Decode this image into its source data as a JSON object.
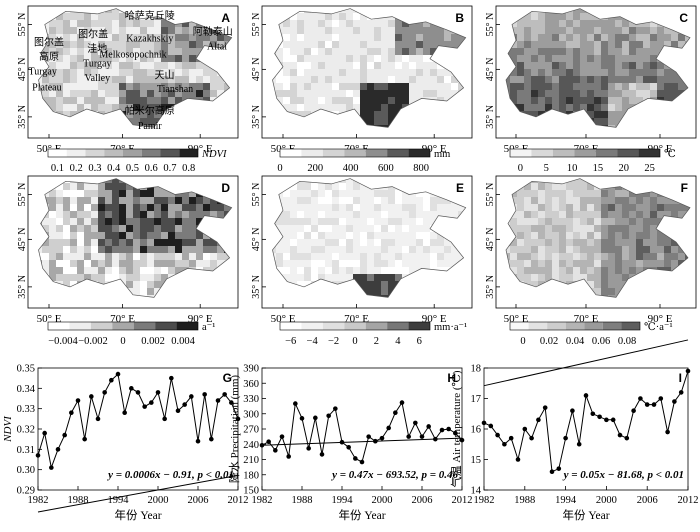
{
  "maps": [
    {
      "id": "A",
      "panel_label": "A",
      "lat_ticks": [
        "55° N",
        "45° N",
        "35° N"
      ],
      "lon_ticks": [
        "50° E",
        "70° E",
        "90° E"
      ],
      "colors": [
        "#ffffff",
        "#f0f0f0",
        "#d6d6d6",
        "#bdbdbd",
        "#a0a0a0",
        "#7d7d7d",
        "#555555",
        "#222222"
      ],
      "place_labels": [
        {
          "text": "图尔盖"
        },
        {
          "text": "高原"
        },
        {
          "text": "Turgay"
        },
        {
          "text": "Plateau"
        },
        {
          "text": "图尔盖"
        },
        {
          "text": "洼地"
        },
        {
          "text": "Turgay"
        },
        {
          "text": "Valley"
        },
        {
          "text": "哈萨克丘陵"
        },
        {
          "text": "Kazakhskiy"
        },
        {
          "text": "Melkosopochnik"
        },
        {
          "text": "阿勒泰山"
        },
        {
          "text": "Altai"
        },
        {
          "text": "天山"
        },
        {
          "text": "Tianshan"
        },
        {
          "text": "帕米尔高原"
        },
        {
          "text": "Pamir"
        }
      ]
    },
    {
      "id": "B",
      "panel_label": "B",
      "lat_ticks": [
        "55° N",
        "45° N",
        "35° N"
      ],
      "lon_ticks": [
        "50° E",
        "70° E",
        "90° E"
      ],
      "colors": [
        "#ffffff",
        "#ececec",
        "#d4d4d4",
        "#b8b8b8",
        "#8e8e8e",
        "#5a5a5a",
        "#2a2a2a"
      ]
    },
    {
      "id": "C",
      "panel_label": "C",
      "lat_ticks": [
        "55° N",
        "45° N",
        "35° N"
      ],
      "lon_ticks": [
        "50° E",
        "70° E",
        "90° E"
      ],
      "colors": [
        "#f4f4f4",
        "#d9d9d9",
        "#bdbdbd",
        "#9d9d9d",
        "#7a7a7a",
        "#575757",
        "#333333"
      ]
    },
    {
      "id": "D",
      "panel_label": "D",
      "lat_ticks": [
        "55° N",
        "45° N",
        "35° N"
      ],
      "lon_ticks": [
        "50° E",
        "70° E",
        "90° E"
      ],
      "colors": [
        "#ffffff",
        "#eeeeee",
        "#cfcfcf",
        "#a8a8a8",
        "#7b7b7b",
        "#4c4c4c",
        "#1e1e1e"
      ]
    },
    {
      "id": "E",
      "panel_label": "E",
      "lat_ticks": [
        "55° N",
        "45° N",
        "35° N"
      ],
      "lon_ticks": [
        "50° E",
        "70° E",
        "90° E"
      ],
      "colors": [
        "#ffffff",
        "#f1f1f1",
        "#e0e0e0",
        "#c9c9c9",
        "#a5a5a5",
        "#777777",
        "#3d3d3d"
      ]
    },
    {
      "id": "F",
      "panel_label": "F",
      "lat_ticks": [
        "55° N",
        "45° N",
        "35° N"
      ],
      "lon_ticks": [
        "50° E",
        "70° E",
        "90° E"
      ],
      "colors": [
        "#f9f9f9",
        "#e3e3e3",
        "#cdcdcd",
        "#b4b4b4",
        "#9a9a9a",
        "#7e7e7e",
        "#5e5e5e"
      ]
    }
  ],
  "colorbars": [
    {
      "id": "A",
      "unit": "NDVI",
      "ticks": [
        "0.1",
        "0.2",
        "0.3",
        "0.4",
        "0.5",
        "0.6",
        "0.7",
        "0.8"
      ],
      "range": [
        0.05,
        0.85
      ]
    },
    {
      "id": "B",
      "unit": "mm",
      "ticks": [
        "0",
        "200",
        "400",
        "600",
        "800"
      ],
      "range": [
        0,
        850
      ]
    },
    {
      "id": "C",
      "unit": "℃",
      "ticks": [
        "0",
        "5",
        "10",
        "15",
        "20",
        "25"
      ],
      "range": [
        -2,
        27
      ]
    },
    {
      "id": "D",
      "unit": "a⁻¹",
      "ticks": [
        "−0.004",
        "−0.002",
        "0",
        "0.002",
        "0.004"
      ],
      "range": [
        -0.005,
        0.005
      ]
    },
    {
      "id": "E",
      "unit": "mm·a⁻¹",
      "ticks": [
        "−6",
        "−4",
        "−2",
        "0",
        "2",
        "4",
        "6"
      ],
      "range": [
        -7,
        7
      ]
    },
    {
      "id": "F",
      "unit": "℃·a⁻¹",
      "ticks": [
        "0",
        "0.02",
        "0.04",
        "0.06",
        "0.08"
      ],
      "range": [
        -0.01,
        0.09
      ]
    }
  ],
  "chart_data": [
    {
      "type": "line",
      "panel_label": "G",
      "x": [
        1982,
        1983,
        1984,
        1985,
        1986,
        1987,
        1988,
        1989,
        1990,
        1991,
        1992,
        1993,
        1994,
        1995,
        1996,
        1997,
        1998,
        1999,
        2000,
        2001,
        2002,
        2003,
        2004,
        2005,
        2006,
        2007,
        2008,
        2009,
        2010,
        2011,
        2012
      ],
      "values": [
        0.307,
        0.318,
        0.301,
        0.31,
        0.317,
        0.328,
        0.334,
        0.315,
        0.336,
        0.325,
        0.338,
        0.344,
        0.347,
        0.328,
        0.34,
        0.338,
        0.331,
        0.333,
        0.338,
        0.325,
        0.345,
        0.329,
        0.332,
        0.336,
        0.314,
        0.337,
        0.315,
        0.334,
        0.337,
        0.333,
        0.325
      ],
      "trend": {
        "slope": 0.0006,
        "intercept": -0.91
      },
      "ylabel": "NDVI",
      "xlabel": "年份 Year",
      "ylim": [
        0.29,
        0.35
      ],
      "yticks": [
        "0.29",
        "0.30",
        "0.31",
        "0.32",
        "0.33",
        "0.34",
        "0.35"
      ],
      "xticks": [
        "1982",
        "1988",
        "1994",
        "2000",
        "2006",
        "2012"
      ],
      "equation": "y = 0.0006x − 0.91,  p < 0.01"
    },
    {
      "type": "line",
      "panel_label": "H",
      "x": [
        1982,
        1983,
        1984,
        1985,
        1986,
        1987,
        1988,
        1989,
        1990,
        1991,
        1992,
        1993,
        1994,
        1995,
        1996,
        1997,
        1998,
        1999,
        2000,
        2001,
        2002,
        2003,
        2004,
        2005,
        2006,
        2007,
        2008,
        2009,
        2010,
        2011,
        2012
      ],
      "values": [
        238,
        245,
        228,
        255,
        216,
        320,
        291,
        232,
        292,
        220,
        296,
        310,
        244,
        234,
        212,
        205,
        255,
        246,
        252,
        272,
        302,
        322,
        255,
        282,
        255,
        275,
        250,
        268,
        270,
        262,
        248
      ],
      "trend": {
        "slope": 0.47,
        "intercept": -693.52
      },
      "ylabel": "降水 Precipitation (mm)",
      "xlabel": "年份 Year",
      "ylim": [
        150,
        390
      ],
      "yticks": [
        "150",
        "180",
        "210",
        "240",
        "270",
        "300",
        "330",
        "360",
        "390"
      ],
      "xticks": [
        "1982",
        "1988",
        "1994",
        "2000",
        "2006",
        "2012"
      ],
      "equation": "y = 0.47x − 693.52,  p = 0.46"
    },
    {
      "type": "line",
      "panel_label": "I",
      "x": [
        1982,
        1983,
        1984,
        1985,
        1986,
        1987,
        1988,
        1989,
        1990,
        1991,
        1992,
        1993,
        1994,
        1995,
        1996,
        1997,
        1998,
        1999,
        2000,
        2001,
        2002,
        2003,
        2004,
        2005,
        2006,
        2007,
        2008,
        2009,
        2010,
        2011,
        2012
      ],
      "values": [
        16.2,
        16.1,
        15.8,
        15.5,
        15.7,
        15.0,
        16.0,
        15.7,
        16.3,
        16.7,
        14.6,
        14.7,
        15.7,
        16.6,
        15.5,
        17.1,
        16.5,
        16.4,
        16.3,
        16.3,
        15.8,
        15.7,
        16.6,
        17.0,
        16.8,
        16.8,
        17.0,
        15.9,
        16.9,
        17.2,
        17.9
      ],
      "trend": {
        "slope": 0.05,
        "intercept": -81.68
      },
      "ylabel": "气温 Air temperature (℃)",
      "xlabel": "年份 Year",
      "ylim": [
        14,
        18
      ],
      "yticks": [
        "14",
        "15",
        "16",
        "17",
        "18"
      ],
      "xticks": [
        "1982",
        "1988",
        "1994",
        "2000",
        "2006",
        "2012"
      ],
      "equation": "y = 0.05x − 81.68,  p < 0.01"
    }
  ]
}
